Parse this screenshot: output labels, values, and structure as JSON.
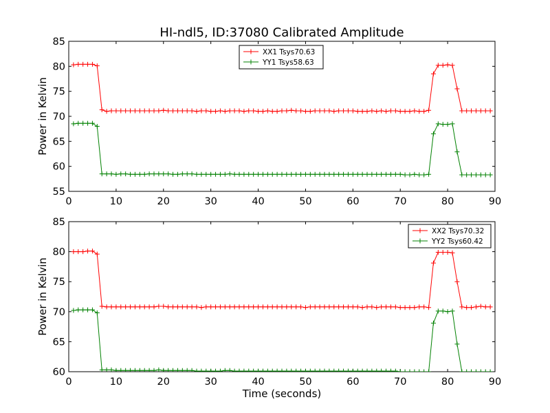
{
  "figure": {
    "title": "HI-ndl5, ID:37080 Calibrated Amplitude"
  },
  "chart_data": [
    {
      "type": "line",
      "title": "HI-ndl5, ID:37080 Calibrated Amplitude",
      "xlabel": "",
      "ylabel": "Power in Kelvin",
      "xlim": [
        0,
        90
      ],
      "ylim": [
        55,
        85
      ],
      "xticks": [
        "0",
        "10",
        "20",
        "30",
        "40",
        "50",
        "60",
        "70",
        "80",
        "90"
      ],
      "yticks": [
        "55",
        "60",
        "65",
        "70",
        "75",
        "80",
        "85"
      ],
      "grid": false,
      "legend_position": "top-center",
      "marker": "plus",
      "x": [
        1,
        2,
        3,
        4,
        5,
        6,
        7,
        8,
        9,
        10,
        11,
        12,
        13,
        14,
        15,
        16,
        17,
        18,
        19,
        20,
        21,
        22,
        23,
        24,
        25,
        26,
        27,
        28,
        29,
        30,
        31,
        32,
        33,
        34,
        35,
        36,
        37,
        38,
        39,
        40,
        41,
        42,
        43,
        44,
        45,
        46,
        47,
        48,
        49,
        50,
        51,
        52,
        53,
        54,
        55,
        56,
        57,
        58,
        59,
        60,
        61,
        62,
        63,
        64,
        65,
        66,
        67,
        68,
        69,
        70,
        71,
        72,
        73,
        74,
        75,
        76,
        77,
        78,
        79,
        80,
        81,
        82,
        83,
        84,
        85,
        86,
        87,
        88,
        89
      ],
      "series": [
        {
          "name": "XX1 Tsys70.63",
          "color": "#ff0000",
          "values": [
            80.3,
            80.4,
            80.4,
            80.4,
            80.4,
            80.1,
            71.3,
            71.0,
            71.1,
            71.1,
            71.1,
            71.1,
            71.1,
            71.1,
            71.1,
            71.1,
            71.1,
            71.1,
            71.1,
            71.2,
            71.1,
            71.1,
            71.1,
            71.1,
            71.1,
            71.1,
            71.0,
            71.1,
            71.1,
            71.0,
            71.0,
            71.1,
            71.0,
            71.1,
            71.1,
            71.1,
            71.0,
            71.1,
            71.1,
            71.0,
            71.0,
            71.1,
            71.0,
            71.0,
            71.1,
            71.1,
            71.2,
            71.1,
            71.1,
            71.0,
            71.0,
            71.1,
            71.1,
            71.1,
            71.1,
            71.0,
            71.1,
            71.1,
            71.1,
            71.1,
            71.0,
            71.0,
            71.0,
            71.1,
            71.0,
            71.1,
            71.0,
            71.1,
            71.1,
            71.0,
            71.0,
            71.0,
            71.1,
            71.0,
            71.0,
            71.2,
            78.5,
            80.2,
            80.2,
            80.3,
            80.2,
            75.5,
            71.1,
            71.1,
            71.1,
            71.1,
            71.1,
            71.1,
            71.1
          ]
        },
        {
          "name": "YY1 Tsys58.63",
          "color": "#008000",
          "values": [
            68.5,
            68.6,
            68.6,
            68.6,
            68.6,
            68.0,
            58.5,
            58.5,
            58.5,
            58.4,
            58.5,
            58.5,
            58.4,
            58.4,
            58.4,
            58.4,
            58.5,
            58.5,
            58.5,
            58.5,
            58.5,
            58.4,
            58.4,
            58.5,
            58.5,
            58.5,
            58.4,
            58.4,
            58.4,
            58.4,
            58.4,
            58.4,
            58.4,
            58.5,
            58.4,
            58.4,
            58.4,
            58.4,
            58.4,
            58.4,
            58.4,
            58.4,
            58.4,
            58.4,
            58.4,
            58.4,
            58.4,
            58.4,
            58.4,
            58.4,
            58.4,
            58.4,
            58.4,
            58.4,
            58.4,
            58.4,
            58.4,
            58.4,
            58.4,
            58.4,
            58.4,
            58.4,
            58.4,
            58.4,
            58.4,
            58.4,
            58.4,
            58.4,
            58.4,
            58.4,
            58.3,
            58.3,
            58.4,
            58.3,
            58.3,
            58.4,
            66.5,
            68.5,
            68.4,
            68.4,
            68.5,
            62.9,
            58.3,
            58.3,
            58.3,
            58.3,
            58.3,
            58.3,
            58.3
          ]
        }
      ]
    },
    {
      "type": "line",
      "title": "",
      "xlabel": "Time (seconds)",
      "ylabel": "Power in Kelvin",
      "xlim": [
        0,
        90
      ],
      "ylim": [
        60,
        85
      ],
      "xticks": [
        "0",
        "10",
        "20",
        "30",
        "40",
        "50",
        "60",
        "70",
        "80",
        "90"
      ],
      "yticks": [
        "60",
        "65",
        "70",
        "75",
        "80",
        "85"
      ],
      "grid": false,
      "legend_position": "top-right",
      "marker": "plus",
      "x": [
        1,
        2,
        3,
        4,
        5,
        6,
        7,
        8,
        9,
        10,
        11,
        12,
        13,
        14,
        15,
        16,
        17,
        18,
        19,
        20,
        21,
        22,
        23,
        24,
        25,
        26,
        27,
        28,
        29,
        30,
        31,
        32,
        33,
        34,
        35,
        36,
        37,
        38,
        39,
        40,
        41,
        42,
        43,
        44,
        45,
        46,
        47,
        48,
        49,
        50,
        51,
        52,
        53,
        54,
        55,
        56,
        57,
        58,
        59,
        60,
        61,
        62,
        63,
        64,
        65,
        66,
        67,
        68,
        69,
        70,
        71,
        72,
        73,
        74,
        75,
        76,
        77,
        78,
        79,
        80,
        81,
        82,
        83,
        84,
        85,
        86,
        87,
        88,
        89
      ],
      "series": [
        {
          "name": "XX2 Tsys70.32",
          "color": "#ff0000",
          "values": [
            80.0,
            80.0,
            80.0,
            80.1,
            80.1,
            79.6,
            70.9,
            70.8,
            70.8,
            70.8,
            70.8,
            70.8,
            70.8,
            70.8,
            70.8,
            70.8,
            70.8,
            70.8,
            70.9,
            70.9,
            70.8,
            70.8,
            70.8,
            70.8,
            70.8,
            70.8,
            70.8,
            70.7,
            70.8,
            70.8,
            70.8,
            70.8,
            70.8,
            70.8,
            70.8,
            70.8,
            70.8,
            70.8,
            70.8,
            70.8,
            70.8,
            70.8,
            70.8,
            70.8,
            70.8,
            70.8,
            70.8,
            70.8,
            70.8,
            70.7,
            70.8,
            70.8,
            70.8,
            70.8,
            70.8,
            70.8,
            70.8,
            70.8,
            70.8,
            70.8,
            70.8,
            70.7,
            70.8,
            70.8,
            70.7,
            70.8,
            70.8,
            70.8,
            70.8,
            70.7,
            70.7,
            70.7,
            70.7,
            70.8,
            70.8,
            70.7,
            78.1,
            79.9,
            79.9,
            79.9,
            79.8,
            75.0,
            70.8,
            70.7,
            70.7,
            70.8,
            70.9,
            70.8,
            70.8
          ]
        },
        {
          "name": "YY2 Tsys60.42",
          "color": "#008000",
          "values": [
            70.2,
            70.3,
            70.3,
            70.3,
            70.3,
            69.8,
            60.3,
            60.3,
            60.3,
            60.2,
            60.2,
            60.2,
            60.2,
            60.2,
            60.2,
            60.2,
            60.2,
            60.2,
            60.3,
            60.2,
            60.2,
            60.2,
            60.2,
            60.2,
            60.2,
            60.2,
            60.1,
            60.1,
            60.1,
            60.1,
            60.1,
            60.1,
            60.2,
            60.2,
            60.1,
            60.1,
            60.1,
            60.1,
            60.1,
            60.1,
            60.1,
            60.1,
            60.1,
            60.1,
            60.1,
            60.1,
            60.1,
            60.1,
            60.1,
            60.1,
            60.1,
            60.1,
            60.1,
            60.1,
            60.1,
            60.1,
            60.1,
            60.1,
            60.1,
            60.1,
            60.1,
            60.1,
            60.1,
            60.1,
            60.1,
            60.1,
            60.1,
            60.1,
            60.1,
            60.0,
            60.0,
            60.0,
            60.0,
            60.0,
            60.0,
            60.0,
            68.1,
            70.1,
            70.1,
            70.0,
            70.1,
            64.6,
            60.0,
            60.0,
            60.0,
            60.0,
            60.0,
            60.0,
            60.0
          ]
        }
      ]
    }
  ]
}
